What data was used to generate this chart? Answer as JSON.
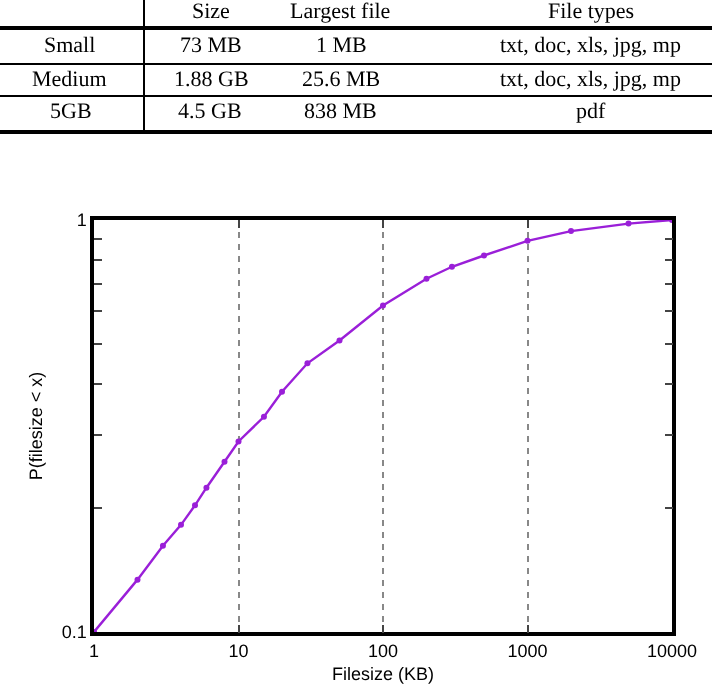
{
  "chart_data": [
    {
      "type": "other",
      "categories": [
        "Size",
        "Largest file",
        "File types"
      ],
      "y_categories": [
        "Small",
        "Medium",
        "5GB"
      ],
      "cell_labels": [
        [
          "73 MB",
          "1 MB",
          "txt, doc, xls, jpg, mp"
        ],
        [
          "1.88 GB",
          "25.6 MB",
          "txt, doc, xls, jpg, mp"
        ],
        [
          "4.5 GB",
          "838 MB",
          "pdf"
        ]
      ]
    },
    {
      "type": "line",
      "xlabel": "Filesize (KB)",
      "ylabel": "P(filesize < x)",
      "log": "xy",
      "x": [
        1,
        2,
        3,
        4,
        5,
        6,
        8,
        10,
        15,
        20,
        30,
        50,
        100,
        200,
        300,
        500,
        1000,
        2000,
        5000,
        10000
      ],
      "series": [
        {
          "color": "#9a1fd8",
          "values": [
            0.1,
            0.134,
            0.162,
            0.182,
            0.203,
            0.224,
            0.259,
            0.29,
            0.333,
            0.383,
            0.449,
            0.51,
            0.62,
            0.72,
            0.77,
            0.82,
            0.89,
            0.94,
            0.98,
            1.0
          ]
        }
      ],
      "xlim": [
        1,
        10000
      ],
      "ylim": [
        0.1,
        1
      ],
      "xticks": [
        1,
        10,
        100,
        1000,
        10000
      ],
      "yticks": [
        0.1,
        {
          "value": 0.2,
          "label": null
        },
        {
          "value": 0.3,
          "label": null
        },
        {
          "value": 0.4,
          "label": null
        },
        {
          "value": 0.5,
          "label": null
        },
        {
          "value": 0.6,
          "label": null
        },
        {
          "value": 0.7,
          "label": null
        },
        {
          "value": 0.8,
          "label": null
        },
        {
          "value": 0.9,
          "label": null
        },
        1
      ],
      "grid": "x",
      "marker": "circle",
      "line_style": "solid"
    }
  ]
}
